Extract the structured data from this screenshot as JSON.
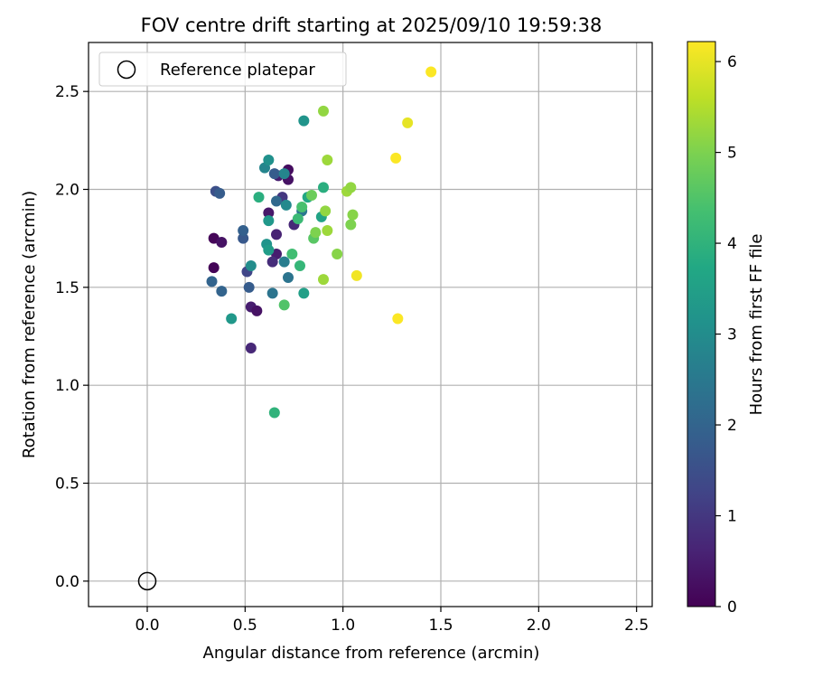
{
  "chart_data": {
    "type": "scatter",
    "title": "FOV centre drift starting at 2025/09/10 19:59:38",
    "xlabel": "Angular distance from reference (arcmin)",
    "ylabel": "Rotation from reference (arcmin)",
    "xlim": [
      -0.3,
      2.58
    ],
    "ylim": [
      -0.13,
      2.75
    ],
    "xticks": [
      0.0,
      0.5,
      1.0,
      1.5,
      2.0,
      2.5
    ],
    "yticks": [
      0.0,
      0.5,
      1.0,
      1.5,
      2.0,
      2.5
    ],
    "grid": true,
    "legend": {
      "position": "top-left",
      "entries": [
        "Reference platepar"
      ]
    },
    "reference_point": {
      "name": "Reference platepar",
      "x": 0.0,
      "y": 0.0,
      "marker": "hollow-circle"
    },
    "colorbar": {
      "label": "Hours from first FF file",
      "colormap": "viridis",
      "range": [
        0,
        6.22
      ],
      "ticks": [
        0,
        1,
        2,
        3,
        4,
        5,
        6
      ]
    },
    "points": [
      {
        "x": 0.34,
        "y": 1.75,
        "c": 0.1
      },
      {
        "x": 0.34,
        "y": 1.6,
        "c": 0.05
      },
      {
        "x": 0.38,
        "y": 1.73,
        "c": 0.3
      },
      {
        "x": 0.53,
        "y": 1.4,
        "c": 0.5
      },
      {
        "x": 0.56,
        "y": 1.38,
        "c": 0.3
      },
      {
        "x": 0.53,
        "y": 1.19,
        "c": 0.7
      },
      {
        "x": 0.62,
        "y": 1.88,
        "c": 0.4
      },
      {
        "x": 0.66,
        "y": 1.77,
        "c": 0.6
      },
      {
        "x": 0.66,
        "y": 1.67,
        "c": 0.5
      },
      {
        "x": 0.64,
        "y": 1.63,
        "c": 0.8
      },
      {
        "x": 0.72,
        "y": 2.05,
        "c": 0.3
      },
      {
        "x": 0.72,
        "y": 2.1,
        "c": 0.2
      },
      {
        "x": 0.67,
        "y": 2.07,
        "c": 0.5
      },
      {
        "x": 0.75,
        "y": 1.82,
        "c": 0.7
      },
      {
        "x": 0.69,
        "y": 1.96,
        "c": 1.0
      },
      {
        "x": 0.33,
        "y": 1.53,
        "c": 2.0
      },
      {
        "x": 0.38,
        "y": 1.48,
        "c": 2.0
      },
      {
        "x": 0.51,
        "y": 1.58,
        "c": 1.3
      },
      {
        "x": 0.52,
        "y": 1.5,
        "c": 1.8
      },
      {
        "x": 0.49,
        "y": 1.75,
        "c": 1.7
      },
      {
        "x": 0.49,
        "y": 1.79,
        "c": 1.9
      },
      {
        "x": 0.35,
        "y": 1.99,
        "c": 1.5
      },
      {
        "x": 0.37,
        "y": 1.98,
        "c": 1.8
      },
      {
        "x": 0.65,
        "y": 2.08,
        "c": 1.8
      },
      {
        "x": 0.66,
        "y": 1.94,
        "c": 2.1
      },
      {
        "x": 0.64,
        "y": 1.47,
        "c": 2.4
      },
      {
        "x": 0.72,
        "y": 1.55,
        "c": 2.4
      },
      {
        "x": 0.7,
        "y": 1.63,
        "c": 2.6
      },
      {
        "x": 0.6,
        "y": 2.11,
        "c": 2.8
      },
      {
        "x": 0.62,
        "y": 2.15,
        "c": 3.1
      },
      {
        "x": 0.71,
        "y": 1.92,
        "c": 2.9
      },
      {
        "x": 0.7,
        "y": 2.08,
        "c": 2.8
      },
      {
        "x": 0.79,
        "y": 1.89,
        "c": 2.5
      },
      {
        "x": 0.53,
        "y": 1.61,
        "c": 3.0
      },
      {
        "x": 0.62,
        "y": 1.84,
        "c": 3.3
      },
      {
        "x": 0.61,
        "y": 1.72,
        "c": 3.2
      },
      {
        "x": 0.62,
        "y": 1.69,
        "c": 3.4
      },
      {
        "x": 0.43,
        "y": 1.34,
        "c": 3.3
      },
      {
        "x": 0.8,
        "y": 2.35,
        "c": 3.2
      },
      {
        "x": 0.8,
        "y": 1.47,
        "c": 3.5
      },
      {
        "x": 0.57,
        "y": 1.96,
        "c": 3.9
      },
      {
        "x": 0.82,
        "y": 1.96,
        "c": 3.7
      },
      {
        "x": 0.89,
        "y": 1.86,
        "c": 3.6
      },
      {
        "x": 0.9,
        "y": 2.01,
        "c": 3.9
      },
      {
        "x": 0.74,
        "y": 1.67,
        "c": 4.3
      },
      {
        "x": 0.78,
        "y": 1.61,
        "c": 4.1
      },
      {
        "x": 0.7,
        "y": 1.41,
        "c": 4.5
      },
      {
        "x": 0.65,
        "y": 0.86,
        "c": 4.0
      },
      {
        "x": 0.77,
        "y": 1.85,
        "c": 4.2
      },
      {
        "x": 0.79,
        "y": 1.91,
        "c": 4.4
      },
      {
        "x": 0.85,
        "y": 1.75,
        "c": 4.6
      },
      {
        "x": 0.84,
        "y": 1.97,
        "c": 4.8
      },
      {
        "x": 0.86,
        "y": 1.78,
        "c": 5.0
      },
      {
        "x": 0.91,
        "y": 1.89,
        "c": 5.2
      },
      {
        "x": 0.92,
        "y": 1.79,
        "c": 5.3
      },
      {
        "x": 0.9,
        "y": 2.4,
        "c": 5.2
      },
      {
        "x": 0.92,
        "y": 2.15,
        "c": 5.3
      },
      {
        "x": 0.9,
        "y": 1.54,
        "c": 5.3
      },
      {
        "x": 0.97,
        "y": 1.67,
        "c": 5.1
      },
      {
        "x": 1.02,
        "y": 1.99,
        "c": 5.3
      },
      {
        "x": 1.04,
        "y": 2.01,
        "c": 5.2
      },
      {
        "x": 1.05,
        "y": 1.87,
        "c": 5.1
      },
      {
        "x": 1.04,
        "y": 1.82,
        "c": 5.0
      },
      {
        "x": 1.07,
        "y": 1.56,
        "c": 6.1
      },
      {
        "x": 1.27,
        "y": 2.16,
        "c": 6.2
      },
      {
        "x": 1.33,
        "y": 2.34,
        "c": 6.0
      },
      {
        "x": 1.45,
        "y": 2.6,
        "c": 6.2
      },
      {
        "x": 1.28,
        "y": 1.34,
        "c": 6.2
      }
    ]
  }
}
